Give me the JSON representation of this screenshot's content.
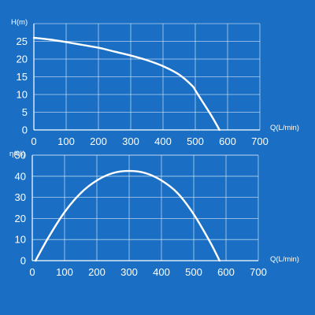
{
  "colors": {
    "background": "#1a6fc4",
    "grid": "#e8f1fb",
    "curve": "#ffffff",
    "text": "#ffffff"
  },
  "chart_data": [
    {
      "type": "line",
      "title": "",
      "ylabel": "H(m)",
      "xlabel": "Q(L/min)",
      "xlim": [
        0,
        700
      ],
      "ylim": [
        0,
        30
      ],
      "xticks": [
        0,
        100,
        200,
        300,
        400,
        500,
        600,
        700
      ],
      "yticks": [
        0,
        5,
        10,
        15,
        20,
        25
      ],
      "grid": true,
      "series": [
        {
          "x": [
            0,
            50,
            100,
            150,
            200,
            250,
            300,
            350,
            400,
            450,
            490,
            500,
            520,
            550,
            575
          ],
          "y": [
            26,
            25.5,
            24.8,
            24,
            23.2,
            22.1,
            21,
            19.7,
            18,
            15.6,
            12.5,
            11.2,
            8.3,
            4,
            0
          ]
        }
      ]
    },
    {
      "type": "line",
      "title": "",
      "ylabel": "η(%)",
      "xlabel": "Q(L/min)",
      "xlim": [
        0,
        700
      ],
      "ylim": [
        0,
        50
      ],
      "xticks": [
        0,
        100,
        200,
        300,
        400,
        500,
        600,
        700
      ],
      "yticks": [
        0,
        10,
        20,
        30,
        40,
        50
      ],
      "grid": true,
      "series": [
        {
          "x": [
            10,
            50,
            100,
            150,
            200,
            250,
            300,
            350,
            400,
            450,
            500,
            550,
            580
          ],
          "y": [
            0,
            11,
            23,
            32,
            38,
            41.5,
            42.5,
            41.5,
            38,
            32,
            22,
            9,
            0
          ]
        }
      ]
    }
  ]
}
